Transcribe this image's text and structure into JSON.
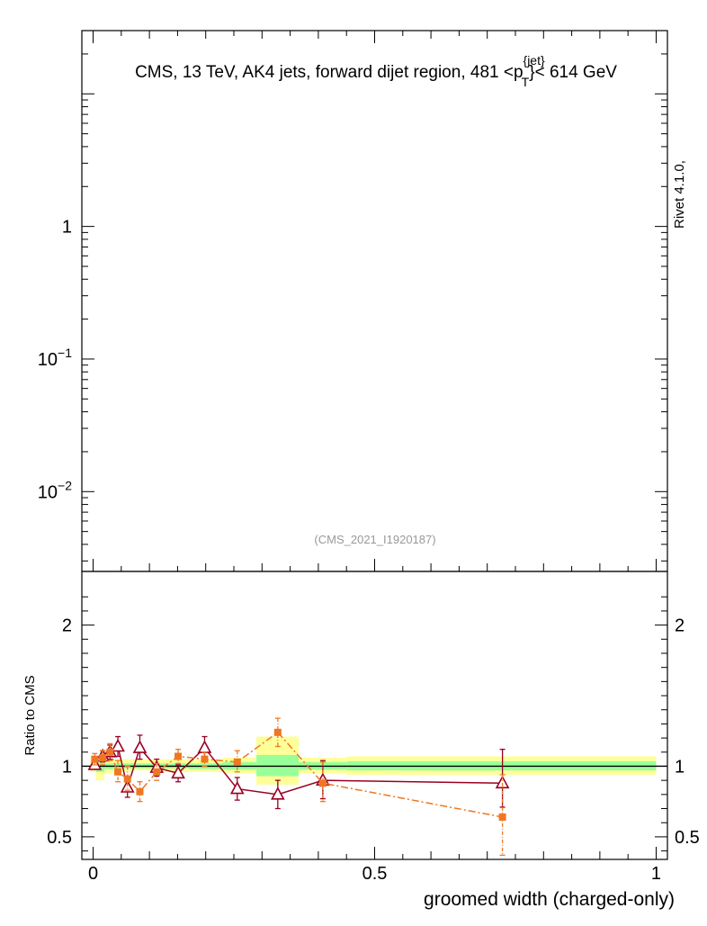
{
  "chart_data": {
    "type": "scatter",
    "title": "CMS, 13 TeV, AK4 jets, forward dijet region, 481 <p",
    "title_sup": "{jet}",
    "title_sub": "T",
    "title_end": "}< 614 GeV",
    "side_label": "Rivet 4.1.0,",
    "watermark": "(CMS_2021_I1920187)",
    "xlabel": "groomed width (charged-only)",
    "ylabel": "Ratio to CMS",
    "xlim": [
      -0.02,
      1.02
    ],
    "top_panel": {
      "yscale": "log",
      "ylim": [
        0.0025,
        30
      ],
      "tick_labels": [
        {
          "value": 1,
          "base": "1",
          "exp": ""
        },
        {
          "value": 0.1,
          "base": "10",
          "exp": "−1"
        },
        {
          "value": 0.01,
          "base": "10",
          "exp": "−2"
        }
      ]
    },
    "ratio_panel": {
      "ylim": [
        0.34,
        2.38
      ],
      "tick_labels": [
        "0.5",
        "1",
        "2"
      ],
      "tick_values": [
        0.5,
        1,
        2
      ],
      "x_tick_labels": [
        "0",
        "0.5",
        "1"
      ],
      "x_tick_values": [
        0,
        0.5,
        1
      ],
      "bands": [
        {
          "x0": -0.005,
          "x1": 0.005,
          "y_lo": 0.96,
          "y_hi": 1.04,
          "green_lo": 0.98,
          "green_hi": 1.02
        },
        {
          "x0": 0.005,
          "x1": 0.02,
          "y_lo": 0.9,
          "y_hi": 1.07,
          "green_lo": 0.96,
          "green_hi": 1.03
        },
        {
          "x0": 0.02,
          "x1": 0.035,
          "y_lo": 0.95,
          "y_hi": 1.05,
          "green_lo": 0.98,
          "green_hi": 1.02
        },
        {
          "x0": 0.035,
          "x1": 0.052,
          "y_lo": 0.96,
          "y_hi": 1.05,
          "green_lo": 0.985,
          "green_hi": 1.02
        },
        {
          "x0": 0.052,
          "x1": 0.072,
          "y_lo": 0.96,
          "y_hi": 1.05,
          "green_lo": 0.985,
          "green_hi": 1.02
        },
        {
          "x0": 0.072,
          "x1": 0.1,
          "y_lo": 0.97,
          "y_hi": 1.05,
          "green_lo": 0.985,
          "green_hi": 1.02
        },
        {
          "x0": 0.1,
          "x1": 0.13,
          "y_lo": 0.965,
          "y_hi": 1.05,
          "green_lo": 0.985,
          "green_hi": 1.02
        },
        {
          "x0": 0.13,
          "x1": 0.17,
          "y_lo": 0.96,
          "y_hi": 1.05,
          "green_lo": 0.985,
          "green_hi": 1.02
        },
        {
          "x0": 0.17,
          "x1": 0.23,
          "y_lo": 0.96,
          "y_hi": 1.05,
          "green_lo": 0.98,
          "green_hi": 1.02
        },
        {
          "x0": 0.23,
          "x1": 0.29,
          "y_lo": 0.95,
          "y_hi": 1.06,
          "green_lo": 0.975,
          "green_hi": 1.03
        },
        {
          "x0": 0.29,
          "x1": 0.365,
          "y_lo": 0.87,
          "y_hi": 1.21,
          "green_lo": 0.93,
          "green_hi": 1.08
        },
        {
          "x0": 0.365,
          "x1": 0.45,
          "y_lo": 0.95,
          "y_hi": 1.06,
          "green_lo": 0.975,
          "green_hi": 1.03
        },
        {
          "x0": 0.45,
          "x1": 1.0,
          "y_lo": 0.94,
          "y_hi": 1.07,
          "green_lo": 0.97,
          "green_hi": 1.035
        }
      ],
      "series": [
        {
          "name": "MC1",
          "style": "solid-triangle",
          "color": "#990022",
          "x": [
            0.003,
            0.017,
            0.03,
            0.044,
            0.061,
            0.083,
            0.113,
            0.151,
            0.198,
            0.256,
            0.328,
            0.408,
            0.727
          ],
          "y": [
            1.01,
            1.07,
            1.1,
            1.14,
            0.85,
            1.13,
            0.99,
            0.95,
            1.13,
            0.84,
            0.8,
            0.9,
            0.88
          ],
          "err_lo": [
            0.03,
            0.04,
            0.05,
            0.07,
            0.07,
            0.08,
            0.06,
            0.06,
            0.07,
            0.08,
            0.1,
            0.13,
            0.17
          ],
          "err_hi": [
            0.03,
            0.04,
            0.05,
            0.07,
            0.07,
            0.09,
            0.06,
            0.06,
            0.08,
            0.08,
            0.1,
            0.14,
            0.24
          ]
        },
        {
          "name": "MC2",
          "style": "dashdot-square",
          "color": "#ee7722",
          "x": [
            0.003,
            0.017,
            0.03,
            0.044,
            0.061,
            0.083,
            0.113,
            0.151,
            0.198,
            0.256,
            0.328,
            0.408,
            0.727
          ],
          "y": [
            1.05,
            1.06,
            1.1,
            0.96,
            0.91,
            0.82,
            0.96,
            1.07,
            1.05,
            1.03,
            1.24,
            0.88,
            0.64
          ],
          "err_lo": [
            0.04,
            0.05,
            0.06,
            0.07,
            0.08,
            0.07,
            0.06,
            0.05,
            0.05,
            0.07,
            0.1,
            0.13,
            0.27
          ],
          "err_hi": [
            0.04,
            0.05,
            0.06,
            0.08,
            0.09,
            0.07,
            0.06,
            0.05,
            0.05,
            0.08,
            0.1,
            0.15,
            0.3
          ]
        }
      ]
    }
  }
}
